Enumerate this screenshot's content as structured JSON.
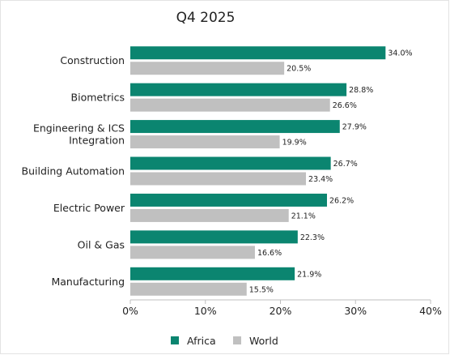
{
  "chart_data": {
    "type": "bar",
    "orientation": "horizontal",
    "title": "Q4 2025",
    "categories": [
      "Construction",
      "Biometrics",
      "Engineering & ICS Integration",
      "Building Automation",
      "Electric Power",
      "Oil & Gas",
      "Manufacturing"
    ],
    "category_lines": [
      [
        "Construction"
      ],
      [
        "Biometrics"
      ],
      [
        "Engineering & ICS",
        "Integration"
      ],
      [
        "Building Automation"
      ],
      [
        "Electric Power"
      ],
      [
        "Oil & Gas"
      ],
      [
        "Manufacturing"
      ]
    ],
    "series": [
      {
        "name": "Africa",
        "color": "#0b8570",
        "values": [
          34.0,
          28.8,
          27.9,
          26.7,
          26.2,
          22.3,
          21.9
        ],
        "labels": [
          "34.0%",
          "28.8%",
          "27.9%",
          "26.7%",
          "26.2%",
          "22.3%",
          "21.9%"
        ]
      },
      {
        "name": "World",
        "color": "#c0c0c0",
        "values": [
          20.5,
          26.6,
          19.9,
          23.4,
          21.1,
          16.6,
          15.5
        ],
        "labels": [
          "20.5%",
          "26.6%",
          "19.9%",
          "23.4%",
          "21.1%",
          "16.6%",
          "15.5%"
        ]
      }
    ],
    "xlim": [
      0,
      40
    ],
    "xticks": [
      0,
      10,
      20,
      30,
      40
    ],
    "xtick_labels": [
      "0%",
      "10%",
      "20%",
      "30%",
      "40%"
    ],
    "grid": false,
    "legend_position": "bottom"
  }
}
